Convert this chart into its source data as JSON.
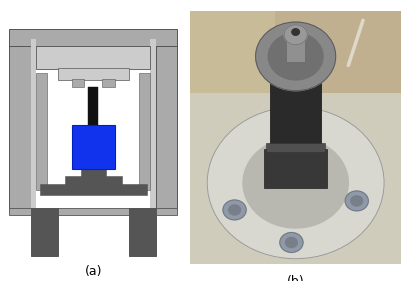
{
  "fig_width": 4.05,
  "fig_height": 2.81,
  "dpi": 100,
  "background_color": "#ffffff",
  "label_a": "(a)",
  "label_b": "(b)",
  "label_fontsize": 9,
  "cad": {
    "dark": "#555555",
    "mid": "#aaaaaa",
    "light": "#cccccc",
    "blue": "#1133ee",
    "black": "#111111",
    "white": "#ffffff",
    "very_light": "#e8e8e8"
  },
  "photo": {
    "bg_top": "#c8b888",
    "bg_bottom": "#d0c8b0",
    "flange_color": "#c8c8c8",
    "cylinder_dark": "#2a2a2a",
    "cylinder_mid": "#444444",
    "cylinder_light": "#666666",
    "bolt_color": "#8898aa",
    "top_cap": "#888888"
  }
}
